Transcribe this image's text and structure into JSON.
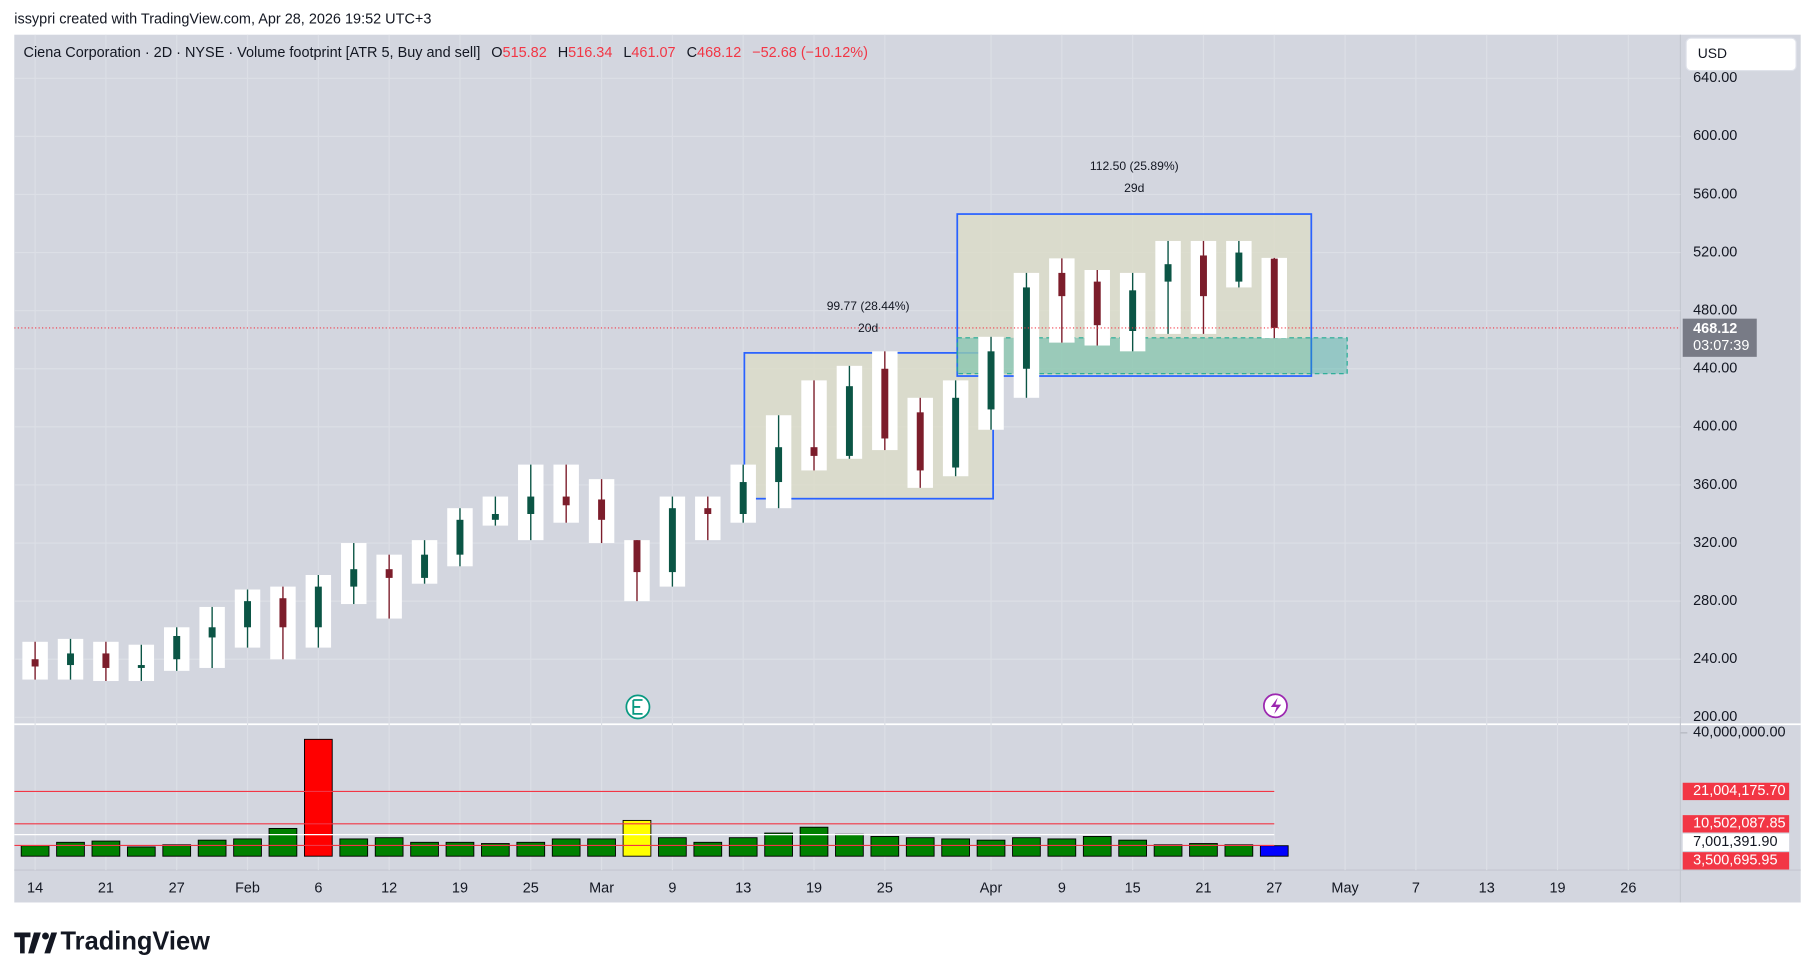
{
  "header": "issypri created with TradingView.com, Apr 28, 2026 19:52 UTC+3",
  "logo": "TradingView",
  "currency": "USD",
  "countdown": "03:07:39",
  "annotations": [
    "112.50 (25.89%)",
    "29d",
    "99.77 (28.44%)",
    "20d"
  ],
  "chart_data": {
    "type": "candlestick",
    "title": "Ciena Corporation · 2D · NYSE · Volume footprint [ATR 5, Buy and sell]",
    "legend_labels": [
      "O",
      "H",
      "L",
      "C"
    ],
    "change": "−52.68 (−10.12%)",
    "categories": [
      "14",
      null,
      "21",
      null,
      "27",
      null,
      "Feb",
      null,
      "6",
      null,
      "12",
      null,
      "19",
      null,
      "25",
      null,
      "Mar",
      null,
      "9",
      null,
      "13",
      null,
      "19",
      null,
      "25",
      null,
      null,
      "Apr",
      null,
      "9",
      null,
      "15",
      null,
      "21",
      null,
      "27",
      null,
      "May",
      null,
      "7",
      null,
      "13",
      null,
      "19",
      null,
      "26",
      null
    ],
    "open": [
      240,
      236,
      244,
      234,
      240,
      255,
      262,
      282,
      262,
      290,
      302,
      296,
      312,
      336,
      340,
      352,
      350,
      322,
      300,
      344,
      340,
      362,
      386,
      380,
      440,
      410,
      372,
      412,
      440,
      506,
      500,
      466,
      500,
      518,
      500,
      515.82,
      null,
      null,
      null,
      null,
      null,
      null,
      null,
      null,
      null,
      null,
      null
    ],
    "high": [
      252,
      254,
      252,
      250,
      262,
      276,
      288,
      290,
      298,
      320,
      312,
      322,
      344,
      352,
      374,
      374,
      364,
      322,
      352,
      352,
      374,
      408,
      432,
      442,
      452,
      420,
      432,
      462,
      506,
      516,
      508,
      506,
      528,
      528,
      528,
      516.34,
      null,
      null,
      null,
      null,
      null,
      null,
      null,
      null,
      null,
      null,
      null
    ],
    "low": [
      226,
      226,
      225,
      225,
      232,
      234,
      248,
      240,
      248,
      278,
      268,
      292,
      304,
      332,
      322,
      334,
      320,
      280,
      290,
      322,
      334,
      344,
      370,
      378,
      384,
      358,
      366,
      398,
      420,
      458,
      456,
      452,
      464,
      464,
      496,
      461.07,
      null,
      null,
      null,
      null,
      null,
      null,
      null,
      null,
      null,
      null,
      null
    ],
    "close": [
      235,
      244,
      234,
      236,
      256,
      262,
      280,
      262,
      290,
      302,
      296,
      312,
      336,
      340,
      352,
      346,
      336,
      300,
      344,
      340,
      362,
      386,
      380,
      428,
      392,
      370,
      420,
      452,
      496,
      490,
      470,
      494,
      512,
      490,
      520,
      468.12,
      null,
      null,
      null,
      null,
      null,
      null,
      null,
      null,
      null,
      null,
      null
    ],
    "up_color": "#0b5545",
    "down_color": "#7c1d2b",
    "ylim": [
      196,
      670
    ],
    "yticks": [
      {
        "value": 200,
        "label": "200.00"
      },
      {
        "value": 240,
        "label": "240.00"
      },
      {
        "value": 280,
        "label": "280.00"
      },
      {
        "value": 320,
        "label": "320.00"
      },
      {
        "value": 360,
        "label": "360.00"
      },
      {
        "value": 400,
        "label": "400.00"
      },
      {
        "value": 440,
        "label": "440.00"
      },
      {
        "value": 480,
        "label": "480.00"
      },
      {
        "value": 520,
        "label": "520.00"
      },
      {
        "value": 560,
        "label": "560.00"
      },
      {
        "value": 600,
        "label": "600.00"
      },
      {
        "value": 640,
        "label": "640.00"
      }
    ],
    "grid": true,
    "volume": {
      "values": [
        3400000,
        4500000,
        4900000,
        3000000,
        3700000,
        5200000,
        5600000,
        9000000,
        37900000,
        5600000,
        6000000,
        4500000,
        4500000,
        4100000,
        4500000,
        5600000,
        5600000,
        11600000,
        6000000,
        4500000,
        6000000,
        7500000,
        9400000,
        7100000,
        6400000,
        6000000,
        5600000,
        5200000,
        6000000,
        5600000,
        6400000,
        5200000,
        3700000,
        4100000,
        3700000,
        3400000,
        null,
        null,
        null,
        null,
        null,
        null,
        null,
        null,
        null,
        null,
        null
      ],
      "colors": [
        "#008000",
        "#008000",
        "#008000",
        "#008000",
        "#008000",
        "#008000",
        "#008000",
        "#008000",
        "#ff0000",
        "#008000",
        "#008000",
        "#008000",
        "#008000",
        "#008000",
        "#008000",
        "#008000",
        "#008000",
        "#ffff00",
        "#008000",
        "#008000",
        "#008000",
        "#008000",
        "#008000",
        "#008000",
        "#008000",
        "#008000",
        "#008000",
        "#008000",
        "#008000",
        "#008000",
        "#008000",
        "#008000",
        "#008000",
        "#008000",
        "#008000",
        "#0000ff",
        null,
        null,
        null,
        null,
        null,
        null,
        null,
        null,
        null,
        null,
        null
      ],
      "ylim": [
        0,
        42400000
      ],
      "yticks": [
        {
          "value": 40000000,
          "label": "40,000,000.00"
        }
      ],
      "levels": [
        {
          "value": 21004175.7,
          "label": "21,004,175.70",
          "color": "#f23645"
        },
        {
          "value": 10502087.85,
          "label": "10,502,087.85",
          "color": "#f23645"
        },
        {
          "value": 7001391.9,
          "label": "7,001,391.90",
          "color": "#ffffff"
        },
        {
          "value": 3500695.95,
          "label": "3,500,695.95",
          "color": "#f23645"
        }
      ]
    }
  }
}
